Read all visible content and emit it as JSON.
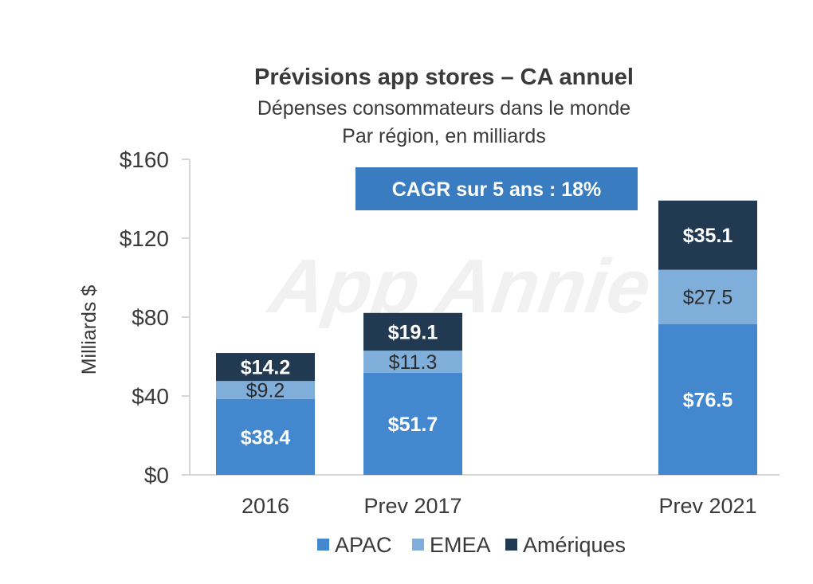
{
  "chart_data": {
    "type": "bar",
    "stacked": true,
    "title": "Prévisions app stores – CA annuel",
    "subtitle_lines": [
      "Dépenses consommateurs dans le monde",
      "Par région, en milliards"
    ],
    "ylabel": "Milliards $",
    "ylim": [
      0,
      160
    ],
    "yticks": [
      0,
      40,
      80,
      120,
      160
    ],
    "ytick_labels": [
      "$0",
      "$40",
      "$80",
      "$120",
      "$160"
    ],
    "categories": [
      "2016",
      "Prev 2017",
      "Prev 2021"
    ],
    "series": [
      {
        "name": "APAC",
        "values": [
          38.4,
          51.7,
          76.5
        ],
        "labels": [
          "$38.4",
          "$51.7",
          "$76.5"
        ],
        "color": "#4388cf",
        "label_color": "#ffffff"
      },
      {
        "name": "EMEA",
        "values": [
          9.2,
          11.3,
          27.5
        ],
        "labels": [
          "$9.2",
          "$11.3",
          "$27.5"
        ],
        "color": "#80aedb",
        "label_color": "#2c2c2c"
      },
      {
        "name": "Amériques",
        "values": [
          14.2,
          19.1,
          35.1
        ],
        "labels": [
          "$14.2",
          "$19.1",
          "$35.1"
        ],
        "color": "#213a52",
        "label_color": "#ffffff"
      }
    ],
    "legend_position": "bottom",
    "annotation": {
      "text": "CAGR sur 5 ans : 18%",
      "color": "#3a7cc0",
      "text_color": "#ffffff"
    },
    "watermark": "App Annie",
    "grid": false
  }
}
